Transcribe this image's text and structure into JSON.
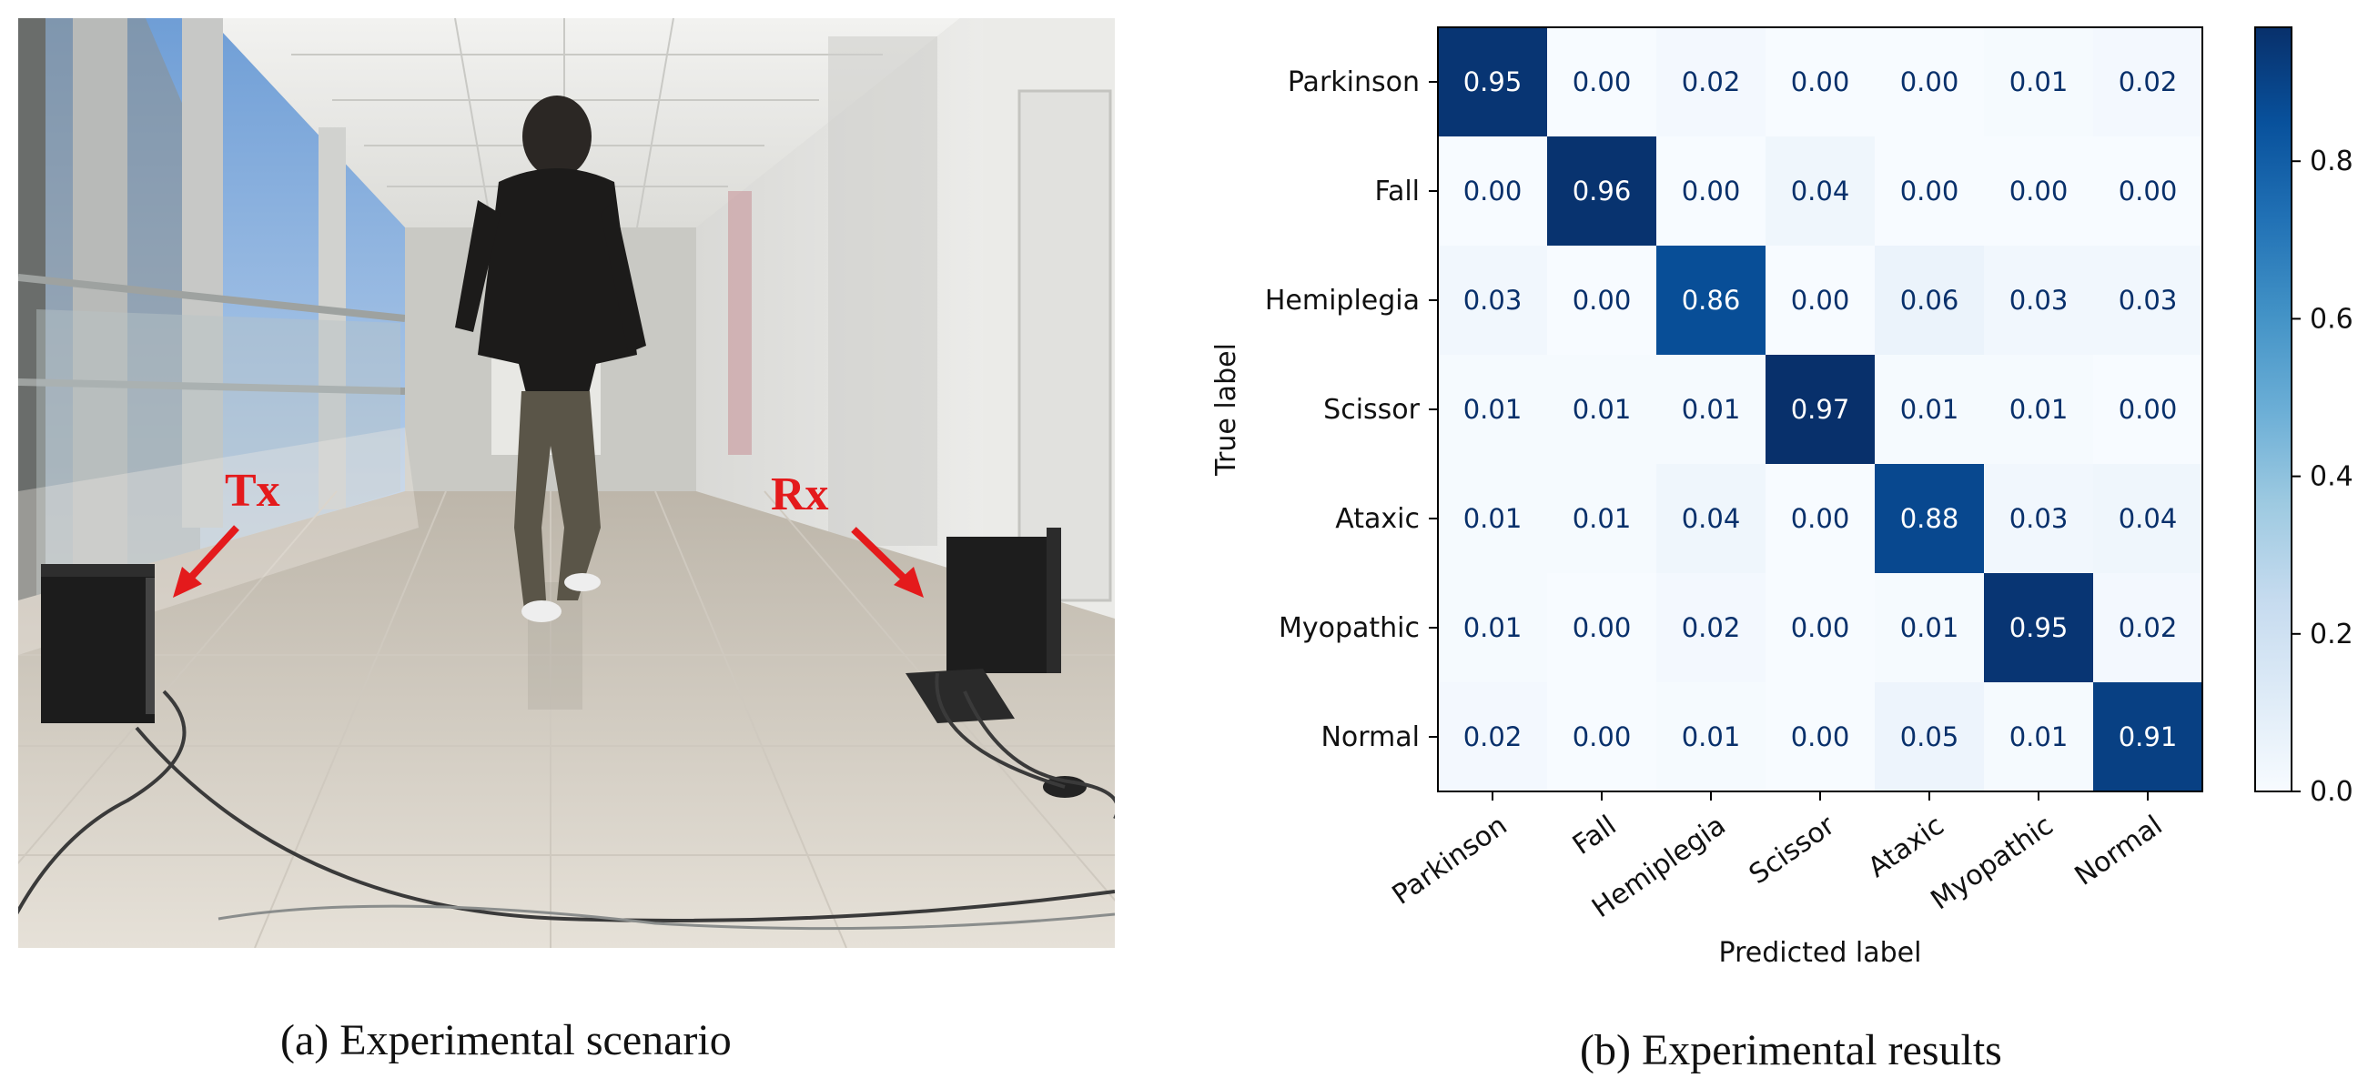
{
  "figure": {
    "photo": {
      "tx_label": "Tx",
      "rx_label": "Rx",
      "caption": "(a) Experimental scenario"
    },
    "caption_b": "(b) Experimental results"
  },
  "chart_data": {
    "type": "heatmap",
    "title": "",
    "xlabel": "Predicted label",
    "ylabel": "True label",
    "row_labels": [
      "Parkinson",
      "Fall",
      "Hemiplegia",
      "Scissor",
      "Ataxic",
      "Myopathic ",
      "Normal"
    ],
    "col_labels": [
      "Parkinson",
      "Fall",
      "Hemiplegia",
      "Scissor",
      "Ataxic",
      "Myopathic",
      "Normal"
    ],
    "values": [
      [
        0.95,
        0.0,
        0.02,
        0.0,
        0.0,
        0.01,
        0.02
      ],
      [
        0.0,
        0.96,
        0.0,
        0.04,
        0.0,
        0.0,
        0.0
      ],
      [
        0.03,
        0.0,
        0.86,
        0.0,
        0.06,
        0.03,
        0.03
      ],
      [
        0.01,
        0.01,
        0.01,
        0.97,
        0.01,
        0.01,
        0.0
      ],
      [
        0.01,
        0.01,
        0.04,
        0.0,
        0.88,
        0.03,
        0.04
      ],
      [
        0.01,
        0.0,
        0.02,
        0.0,
        0.01,
        0.95,
        0.02
      ],
      [
        0.02,
        0.0,
        0.01,
        0.0,
        0.05,
        0.01,
        0.91
      ]
    ],
    "colormap": "Blues",
    "colorbar": {
      "range": [
        0,
        0.97
      ],
      "ticks": [
        0.0,
        0.2,
        0.4,
        0.6,
        0.8
      ],
      "tick_labels": [
        "0.0",
        "0.2",
        "0.4",
        "0.6",
        "0.8"
      ]
    },
    "grid": false,
    "legend": "colorbar-right"
  }
}
